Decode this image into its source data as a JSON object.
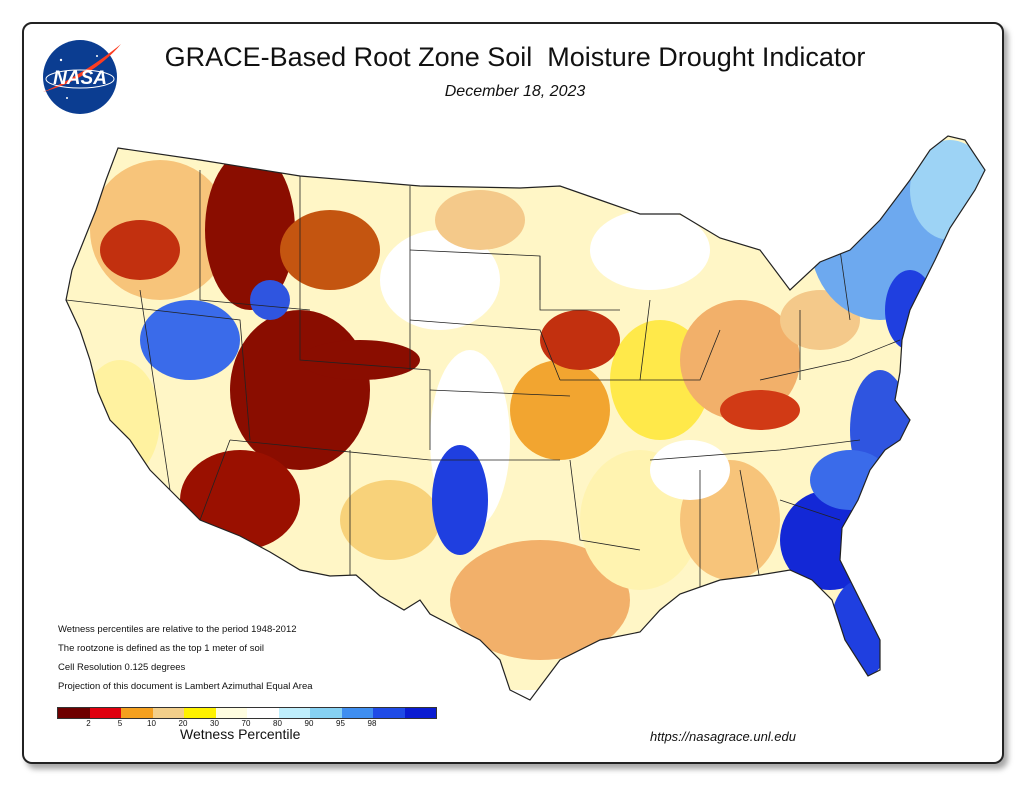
{
  "header": {
    "title": "GRACE-Based Root Zone Soil  Moisture Drought Indicator",
    "date": "December 18, 2023",
    "logo_text": "NASA"
  },
  "notes": [
    "Wetness percentiles are relative to the period 1948-2012",
    "The rootzone is defined as the top 1 meter of soil",
    "Cell Resolution 0.125 degrees",
    "Projection of this document is Lambert Azimuthal Equal Area"
  ],
  "legend": {
    "title": "Wetness Percentile",
    "colors": [
      "#6e0000",
      "#e0000e",
      "#f5a01e",
      "#f3cf8a",
      "#fff200",
      "#fffde0",
      "#ffffff",
      "#bfeefc",
      "#86d1f3",
      "#3f8ef0",
      "#1f4be6",
      "#0a1cd2"
    ],
    "ticks": [
      "2",
      "5",
      "10",
      "20",
      "30",
      "70",
      "80",
      "90",
      "95",
      "98"
    ]
  },
  "url": "https://nasagrace.unl.edu",
  "colors": {
    "dark_red": "#8a0d00",
    "red": "#d81a10",
    "orange": "#f2a530",
    "tan": "#f4c98a",
    "yellow": "#ffe94a",
    "white": "#ffffff",
    "light_blue": "#a8dcf5",
    "blue": "#2f63e8",
    "dark_blue": "#1328d6",
    "state_lines": "#222222"
  }
}
